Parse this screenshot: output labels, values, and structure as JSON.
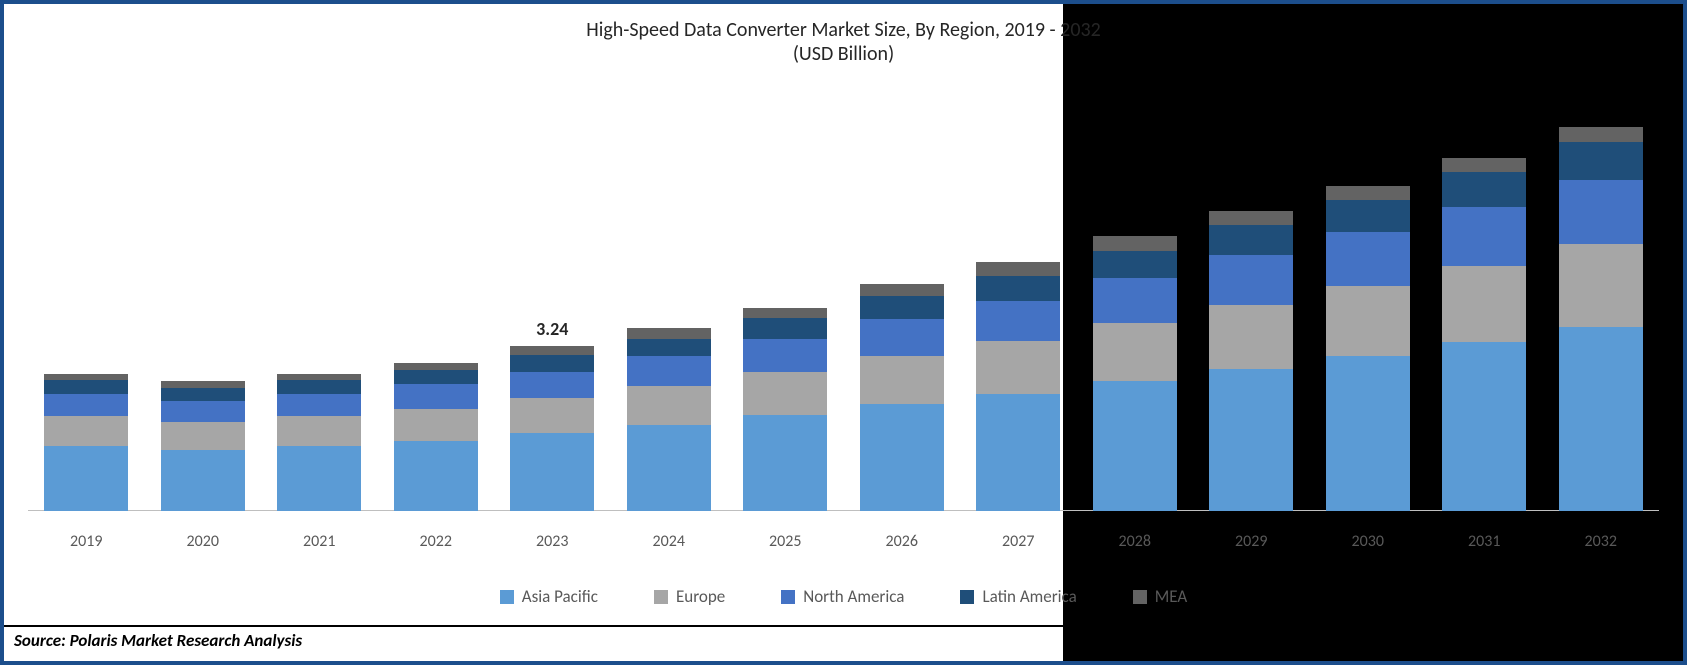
{
  "chart": {
    "type": "stacked-bar",
    "title_line1": "High-Speed Data Converter Market Size, By Region, 2019 - 2032",
    "title_line2": "(USD Billion)",
    "title_fontsize": 20,
    "title_color": "#262626",
    "categories": [
      "2019",
      "2020",
      "2021",
      "2022",
      "2023",
      "2024",
      "2025",
      "2026",
      "2027",
      "2028",
      "2029",
      "2030",
      "2031",
      "2032"
    ],
    "series": [
      {
        "name": "Asia Pacific",
        "color": "#5b9bd5"
      },
      {
        "name": "Europe",
        "color": "#a6a6a6"
      },
      {
        "name": "North America",
        "color": "#4472c4"
      },
      {
        "name": "Latin America",
        "color": "#1f4e79"
      },
      {
        "name": "MEA",
        "color": "#636363"
      }
    ],
    "values": [
      [
        1.28,
        0.58,
        0.44,
        0.27,
        0.13
      ],
      [
        1.2,
        0.55,
        0.42,
        0.25,
        0.13
      ],
      [
        1.28,
        0.58,
        0.44,
        0.27,
        0.13
      ],
      [
        1.38,
        0.63,
        0.48,
        0.29,
        0.14
      ],
      [
        1.53,
        0.69,
        0.52,
        0.32,
        0.18
      ],
      [
        1.7,
        0.76,
        0.58,
        0.35,
        0.21
      ],
      [
        1.88,
        0.85,
        0.66,
        0.4,
        0.21
      ],
      [
        2.1,
        0.95,
        0.73,
        0.44,
        0.24
      ],
      [
        2.3,
        1.04,
        0.8,
        0.49,
        0.27
      ],
      [
        2.55,
        1.15,
        0.88,
        0.54,
        0.28
      ],
      [
        2.8,
        1.26,
        0.97,
        0.59,
        0.28
      ],
      [
        3.05,
        1.37,
        1.06,
        0.64,
        0.28
      ],
      [
        3.32,
        1.5,
        1.15,
        0.7,
        0.28
      ],
      [
        3.62,
        1.63,
        1.25,
        0.76,
        0.29
      ]
    ],
    "ymax": 8.2,
    "highlight": {
      "index": 4,
      "label": "3.24",
      "fontsize": 18
    },
    "x_label_fontsize": 16,
    "x_label_color": "#595959",
    "legend_fontsize": 17,
    "bar_width_pct": 72,
    "background_left": "#ffffff",
    "background_right": "#000000",
    "axis_color": "#bfbfbf",
    "frame_border_color": "#1c4e8c"
  },
  "source_text": "Source: Polaris Market Research Analysis",
  "source_fontsize": 17
}
